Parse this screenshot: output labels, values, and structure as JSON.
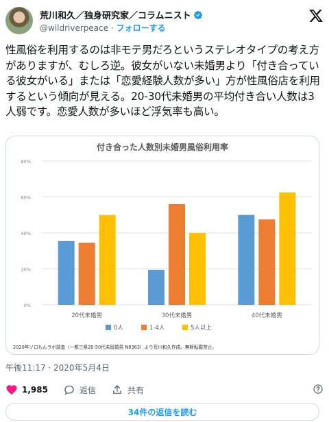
{
  "author": {
    "name": "荒川和久／独身研究家／コラムニスト",
    "handle": "@wildriverpeace",
    "separator": "·",
    "follow_label": "フォローする"
  },
  "tweet": {
    "text": "性風俗を利用するのは非モテ男だろというステレオタイプの考え方がありますが、むしろ逆。彼女がいない未婚男より「付き合っている彼女がいる」または「恋愛経験人数が多い」方が性風俗店を利用するという傾向が見える。20-30代未婚男の平均付き合い人数は3人弱です。恋愛人数が多いほど浮気率も高い。"
  },
  "chart_data": {
    "type": "bar",
    "title": "付き合った人数別未婚男風俗利用率",
    "categories": [
      "20代未婚男",
      "30代未婚男",
      "40代未婚男"
    ],
    "series": [
      {
        "name": "0人",
        "values": [
          35.5,
          19.5,
          50
        ],
        "color": "#5b9bd5"
      },
      {
        "name": "1-4人",
        "values": [
          34.5,
          56,
          47.5
        ],
        "color": "#ed7d31"
      },
      {
        "name": "5人以上",
        "values": [
          50,
          40,
          62.5
        ],
        "color": "#ffc000"
      }
    ],
    "ylim": [
      0,
      80
    ],
    "yticks": [
      "0%",
      "20%",
      "40%",
      "60%",
      "80%"
    ],
    "grid": true,
    "legend": "bottom",
    "source": "2020年ソロもんラボ調査（一都三県20-50代未既婚男 N8363）より荒川和久作成。無断転載禁止。"
  },
  "meta": {
    "timestamp": "午後11:17 · 2020年5月4日"
  },
  "actions": {
    "like_count": "1,985",
    "reply_label": "返信",
    "share_label": "共有"
  },
  "read_replies_label": "34件の返信を読む",
  "icons": {
    "verified": "verified-badge-icon",
    "logo": "x-logo-icon",
    "like": "heart-icon",
    "reply": "speech-bubble-icon",
    "share": "share-upload-icon",
    "help": "help-circle-icon"
  },
  "colors": {
    "like": "#f91880",
    "link": "#1d9bf0",
    "muted": "#536471"
  }
}
